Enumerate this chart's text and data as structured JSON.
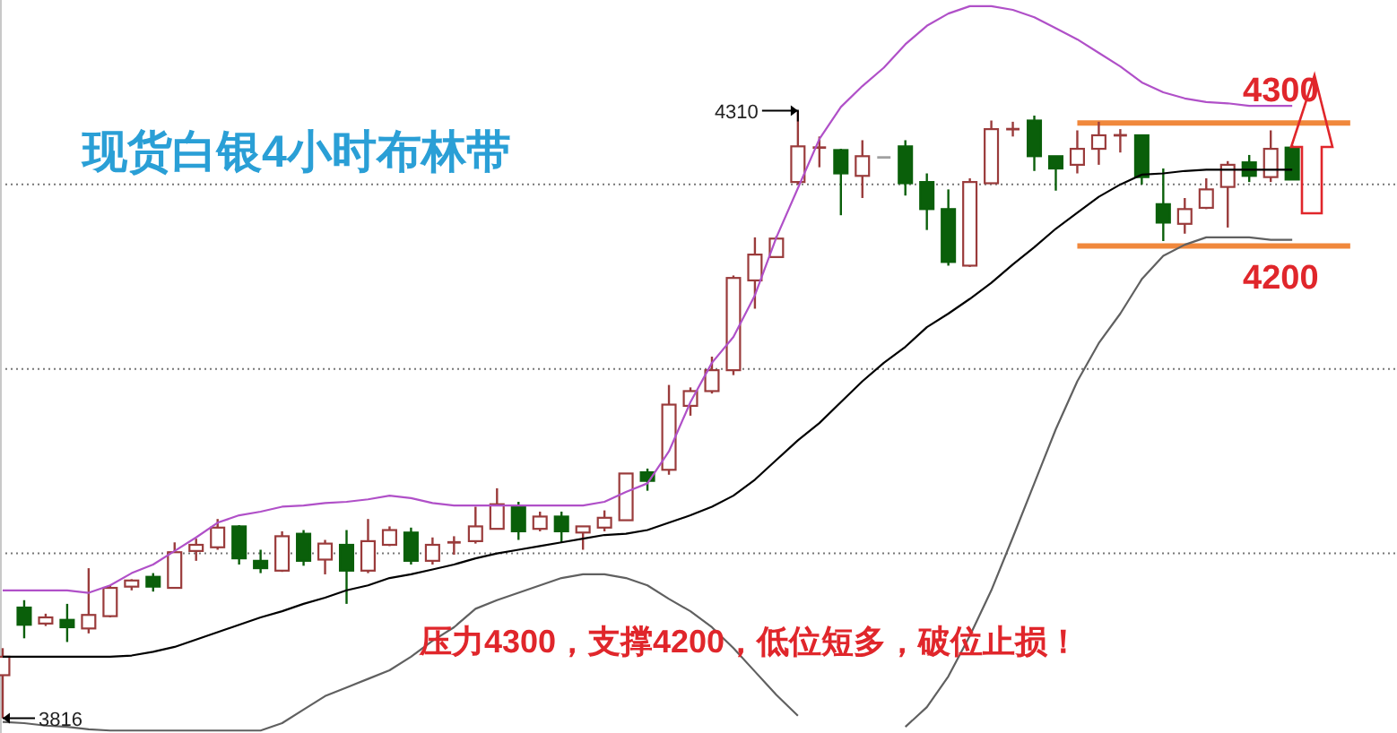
{
  "chart_data": {
    "type": "candlestick",
    "title": "现货白银4小时布林带",
    "categories": [
      null,
      null,
      null,
      null,
      null,
      null,
      null,
      null,
      null,
      null,
      null,
      null,
      null,
      null,
      null,
      null,
      null,
      null,
      null,
      null,
      null,
      null,
      null,
      null,
      null,
      null,
      null,
      null,
      null,
      null,
      null,
      null,
      null,
      null,
      null,
      null,
      null,
      null,
      null,
      null,
      null,
      null,
      null,
      null,
      null,
      null,
      null,
      null,
      null,
      null,
      null,
      null,
      null,
      null,
      null,
      null,
      null,
      null,
      null,
      null,
      null
    ],
    "ohlc": [
      [
        3851,
        3873,
        3816,
        3866
      ],
      [
        3906,
        3912,
        3881,
        3892
      ],
      [
        3893,
        3901,
        3891,
        3898
      ],
      [
        3896,
        3909,
        3878,
        3890
      ],
      [
        3889,
        3938,
        3885,
        3900
      ],
      [
        3899,
        3924,
        3898,
        3922
      ],
      [
        3923,
        3929,
        3920,
        3928
      ],
      [
        3931,
        3934,
        3919,
        3923
      ],
      [
        3922,
        3959,
        3922,
        3951
      ],
      [
        3952,
        3962,
        3944,
        3957
      ],
      [
        3955,
        3978,
        3953,
        3971
      ],
      [
        3972,
        3973,
        3941,
        3946
      ],
      [
        3944,
        3953,
        3934,
        3938
      ],
      [
        3936,
        3968,
        3935,
        3964
      ],
      [
        3966,
        3969,
        3940,
        3944
      ],
      [
        3945,
        3961,
        3933,
        3958
      ],
      [
        3957,
        3969,
        3909,
        3936
      ],
      [
        3936,
        3978,
        3934,
        3960
      ],
      [
        3957,
        3972,
        3956,
        3969
      ],
      [
        3967,
        3971,
        3941,
        3944
      ],
      [
        3944,
        3963,
        3941,
        3957
      ],
      [
        3959,
        3964,
        3949,
        3959
      ],
      [
        3960,
        3988,
        3958,
        3972
      ],
      [
        3970,
        4003,
        3970,
        3990
      ],
      [
        3988,
        3992,
        3961,
        3968
      ],
      [
        3970,
        3984,
        3968,
        3980
      ],
      [
        3980,
        3984,
        3959,
        3968
      ],
      [
        3967,
        3972,
        3953,
        3972
      ],
      [
        3971,
        3985,
        3968,
        3979
      ],
      [
        3977,
        4015,
        3977,
        4015
      ],
      [
        4016,
        4019,
        4001,
        4009
      ],
      [
        4018,
        4087,
        4014,
        4071
      ],
      [
        4070,
        4085,
        4062,
        4082
      ],
      [
        4082,
        4110,
        4080,
        4099
      ],
      [
        4099,
        4176,
        4095,
        4174
      ],
      [
        4172,
        4207,
        4149,
        4193
      ],
      [
        4191,
        4208,
        4191,
        4206
      ],
      [
        4252,
        4310,
        4250,
        4281
      ],
      [
        4280,
        4289,
        4264,
        4280
      ],
      [
        4278,
        4279,
        4225,
        4259
      ],
      [
        4257,
        4286,
        4239,
        4273
      ],
      [
        4272,
        4272,
        4272,
        4272
      ],
      [
        4281,
        4286,
        4241,
        4251
      ],
      [
        4252,
        4259,
        4213,
        4230
      ],
      [
        4230,
        4246,
        4184,
        4187
      ],
      [
        4184,
        4255,
        4183,
        4252
      ],
      [
        4251,
        4302,
        4251,
        4295
      ],
      [
        4295,
        4301,
        4289,
        4295
      ],
      [
        4302,
        4306,
        4261,
        4273
      ],
      [
        4273,
        4273,
        4245,
        4263
      ],
      [
        4266,
        4294,
        4259,
        4279
      ],
      [
        4279,
        4301,
        4266,
        4290
      ],
      [
        4290,
        4295,
        4276,
        4290
      ],
      [
        4290,
        4290,
        4250,
        4256
      ],
      [
        4234,
        4263,
        4204,
        4219
      ],
      [
        4218,
        4239,
        4210,
        4230
      ],
      [
        4231,
        4255,
        4230,
        4246
      ],
      [
        4248,
        4269,
        4215,
        4266
      ],
      [
        4268,
        4274,
        4252,
        4257
      ],
      [
        4256,
        4294,
        4252,
        4279
      ],
      [
        4280,
        4282,
        4254,
        4254
      ]
    ],
    "colors": [
      "#9a3b3b",
      "#0a5f0a",
      "#9a3b3b",
      "#0a5f0a",
      "#9a3b3b",
      "#9a3b3b",
      "#9a3b3b",
      "#0a5f0a",
      "#9a3b3b",
      "#9a3b3b",
      "#9a3b3b",
      "#0a5f0a",
      "#0a5f0a",
      "#9a3b3b",
      "#0a5f0a",
      "#9a3b3b",
      "#0a5f0a",
      "#9a3b3b",
      "#9a3b3b",
      "#0a5f0a",
      "#9a3b3b",
      "#9a3b3b",
      "#9a3b3b",
      "#9a3b3b",
      "#0a5f0a",
      "#9a3b3b",
      "#0a5f0a",
      "#9a3b3b",
      "#9a3b3b",
      "#9a3b3b",
      "#0a5f0a",
      "#9a3b3b",
      "#9a3b3b",
      "#9a3b3b",
      "#9a3b3b",
      "#9a3b3b",
      "#9a3b3b",
      "#9a3b3b",
      "#9a3b3b",
      "#0a5f0a",
      "#9a3b3b",
      "#a0a0a0",
      "#0a5f0a",
      "#0a5f0a",
      "#0a5f0a",
      "#9a3b3b",
      "#9a3b3b",
      "#9a3b3b",
      "#0a5f0a",
      "#0a5f0a",
      "#9a3b3b",
      "#9a3b3b",
      "#9a3b3b",
      "#0a5f0a",
      "#0a5f0a",
      "#9a3b3b",
      "#9a3b3b",
      "#9a3b3b",
      "#0a5f0a",
      "#9a3b3b",
      "#0a5f0a"
    ],
    "series": [
      {
        "type": "line",
        "color": "#b050c8",
        "values": [
          3920,
          3920,
          3920,
          3920,
          3918,
          3924,
          3934,
          3941,
          3952,
          3963,
          3975,
          3981,
          3984,
          3988,
          3989,
          3991,
          3992,
          3994,
          3997,
          3995,
          3991,
          3989,
          3989,
          3989,
          3989,
          3989,
          3989,
          3989,
          3992,
          4000,
          4007,
          4033,
          4073,
          4105,
          4126,
          4160,
          4207,
          4247,
          4287,
          4313,
          4330,
          4345,
          4364,
          4379,
          4389,
          4395,
          4395,
          4392,
          4386,
          4377,
          4368,
          4357,
          4346,
          4333,
          4325,
          4320,
          4317,
          4316,
          4314,
          4314,
          4314
        ]
      },
      {
        "type": "line",
        "color": "#000000",
        "values": [
          3866,
          3866,
          3866,
          3866,
          3866,
          3866,
          3867,
          3870,
          3874,
          3880,
          3886,
          3892,
          3898,
          3903,
          3909,
          3914,
          3920,
          3924,
          3930,
          3933,
          3937,
          3941,
          3946,
          3950,
          3953,
          3956,
          3959,
          3962,
          3965,
          3966,
          3969,
          3975,
          3981,
          3988,
          3997,
          4010,
          4026,
          4042,
          4056,
          4073,
          4090,
          4105,
          4118,
          4134,
          4145,
          4157,
          4170,
          4185,
          4199,
          4214,
          4227,
          4240,
          4250,
          4258,
          4259,
          4261,
          4262,
          4262,
          4262,
          4262,
          4262
        ]
      },
      {
        "type": "line",
        "color": "#606060",
        "values": [
          3813,
          3812,
          3810,
          3809,
          3807,
          3806,
          3806,
          3806,
          3806,
          3806,
          3806,
          3806,
          3806,
          3812,
          3823,
          3834,
          3841,
          3848,
          3855,
          3866,
          3879,
          3890,
          3905,
          3912,
          3918,
          3924,
          3930,
          3933,
          3933,
          3930,
          3924,
          3913,
          3903,
          3890,
          3873,
          3854,
          3835,
          3818,
          null,
          null,
          null,
          null,
          3809,
          3825,
          3850,
          3883,
          3920,
          3963,
          4007,
          4051,
          4090,
          4121,
          4145,
          4173,
          4192,
          4201,
          4207,
          4207,
          4207,
          4205,
          4205
        ]
      }
    ],
    "yticks": [
      {
        "value": 3950,
        "label": null
      },
      {
        "value": 4100,
        "label": null
      },
      {
        "value": 4250,
        "label": null
      }
    ],
    "ylim": [
      3804,
      4400
    ],
    "grid": "y",
    "tick_labels": false,
    "ref_lines": [
      {
        "axis": "y",
        "value": 4300,
        "label": "4300",
        "color": "#f0883c"
      },
      {
        "axis": "y",
        "value": 4200,
        "label": "4200",
        "color": "#f0883c"
      }
    ],
    "annotations": [
      "压力4300，支撑4200，低位短多，破位止损！",
      "4310",
      {
        "text": "3816",
        "y": 3816
      }
    ]
  }
}
